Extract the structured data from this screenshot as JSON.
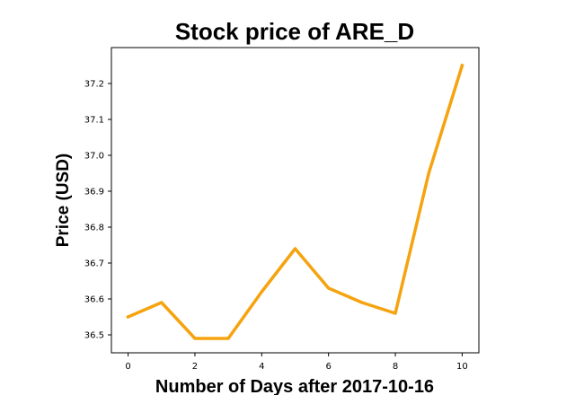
{
  "chart_data": {
    "type": "line",
    "title": "Stock price of ARE_D",
    "xlabel": "Number of Days after 2017-10-16",
    "ylabel": "Price (USD)",
    "x": [
      0,
      1,
      2,
      3,
      4,
      5,
      6,
      7,
      8,
      9,
      10
    ],
    "series": [
      {
        "values": [
          36.55,
          36.59,
          36.49,
          36.49,
          36.62,
          36.74,
          36.63,
          36.59,
          36.56,
          36.95,
          37.25
        ],
        "color": "#f5a30f"
      }
    ],
    "xlim": [
      -0.5,
      10.5
    ],
    "ylim": [
      36.45,
      37.3
    ],
    "x_ticks": [
      "0",
      "2",
      "4",
      "6",
      "8",
      "10"
    ],
    "y_ticks": [
      "36.5",
      "36.6",
      "36.7",
      "36.8",
      "36.9",
      "37.0",
      "37.1",
      "37.2"
    ],
    "grid": false,
    "legend": "none"
  }
}
